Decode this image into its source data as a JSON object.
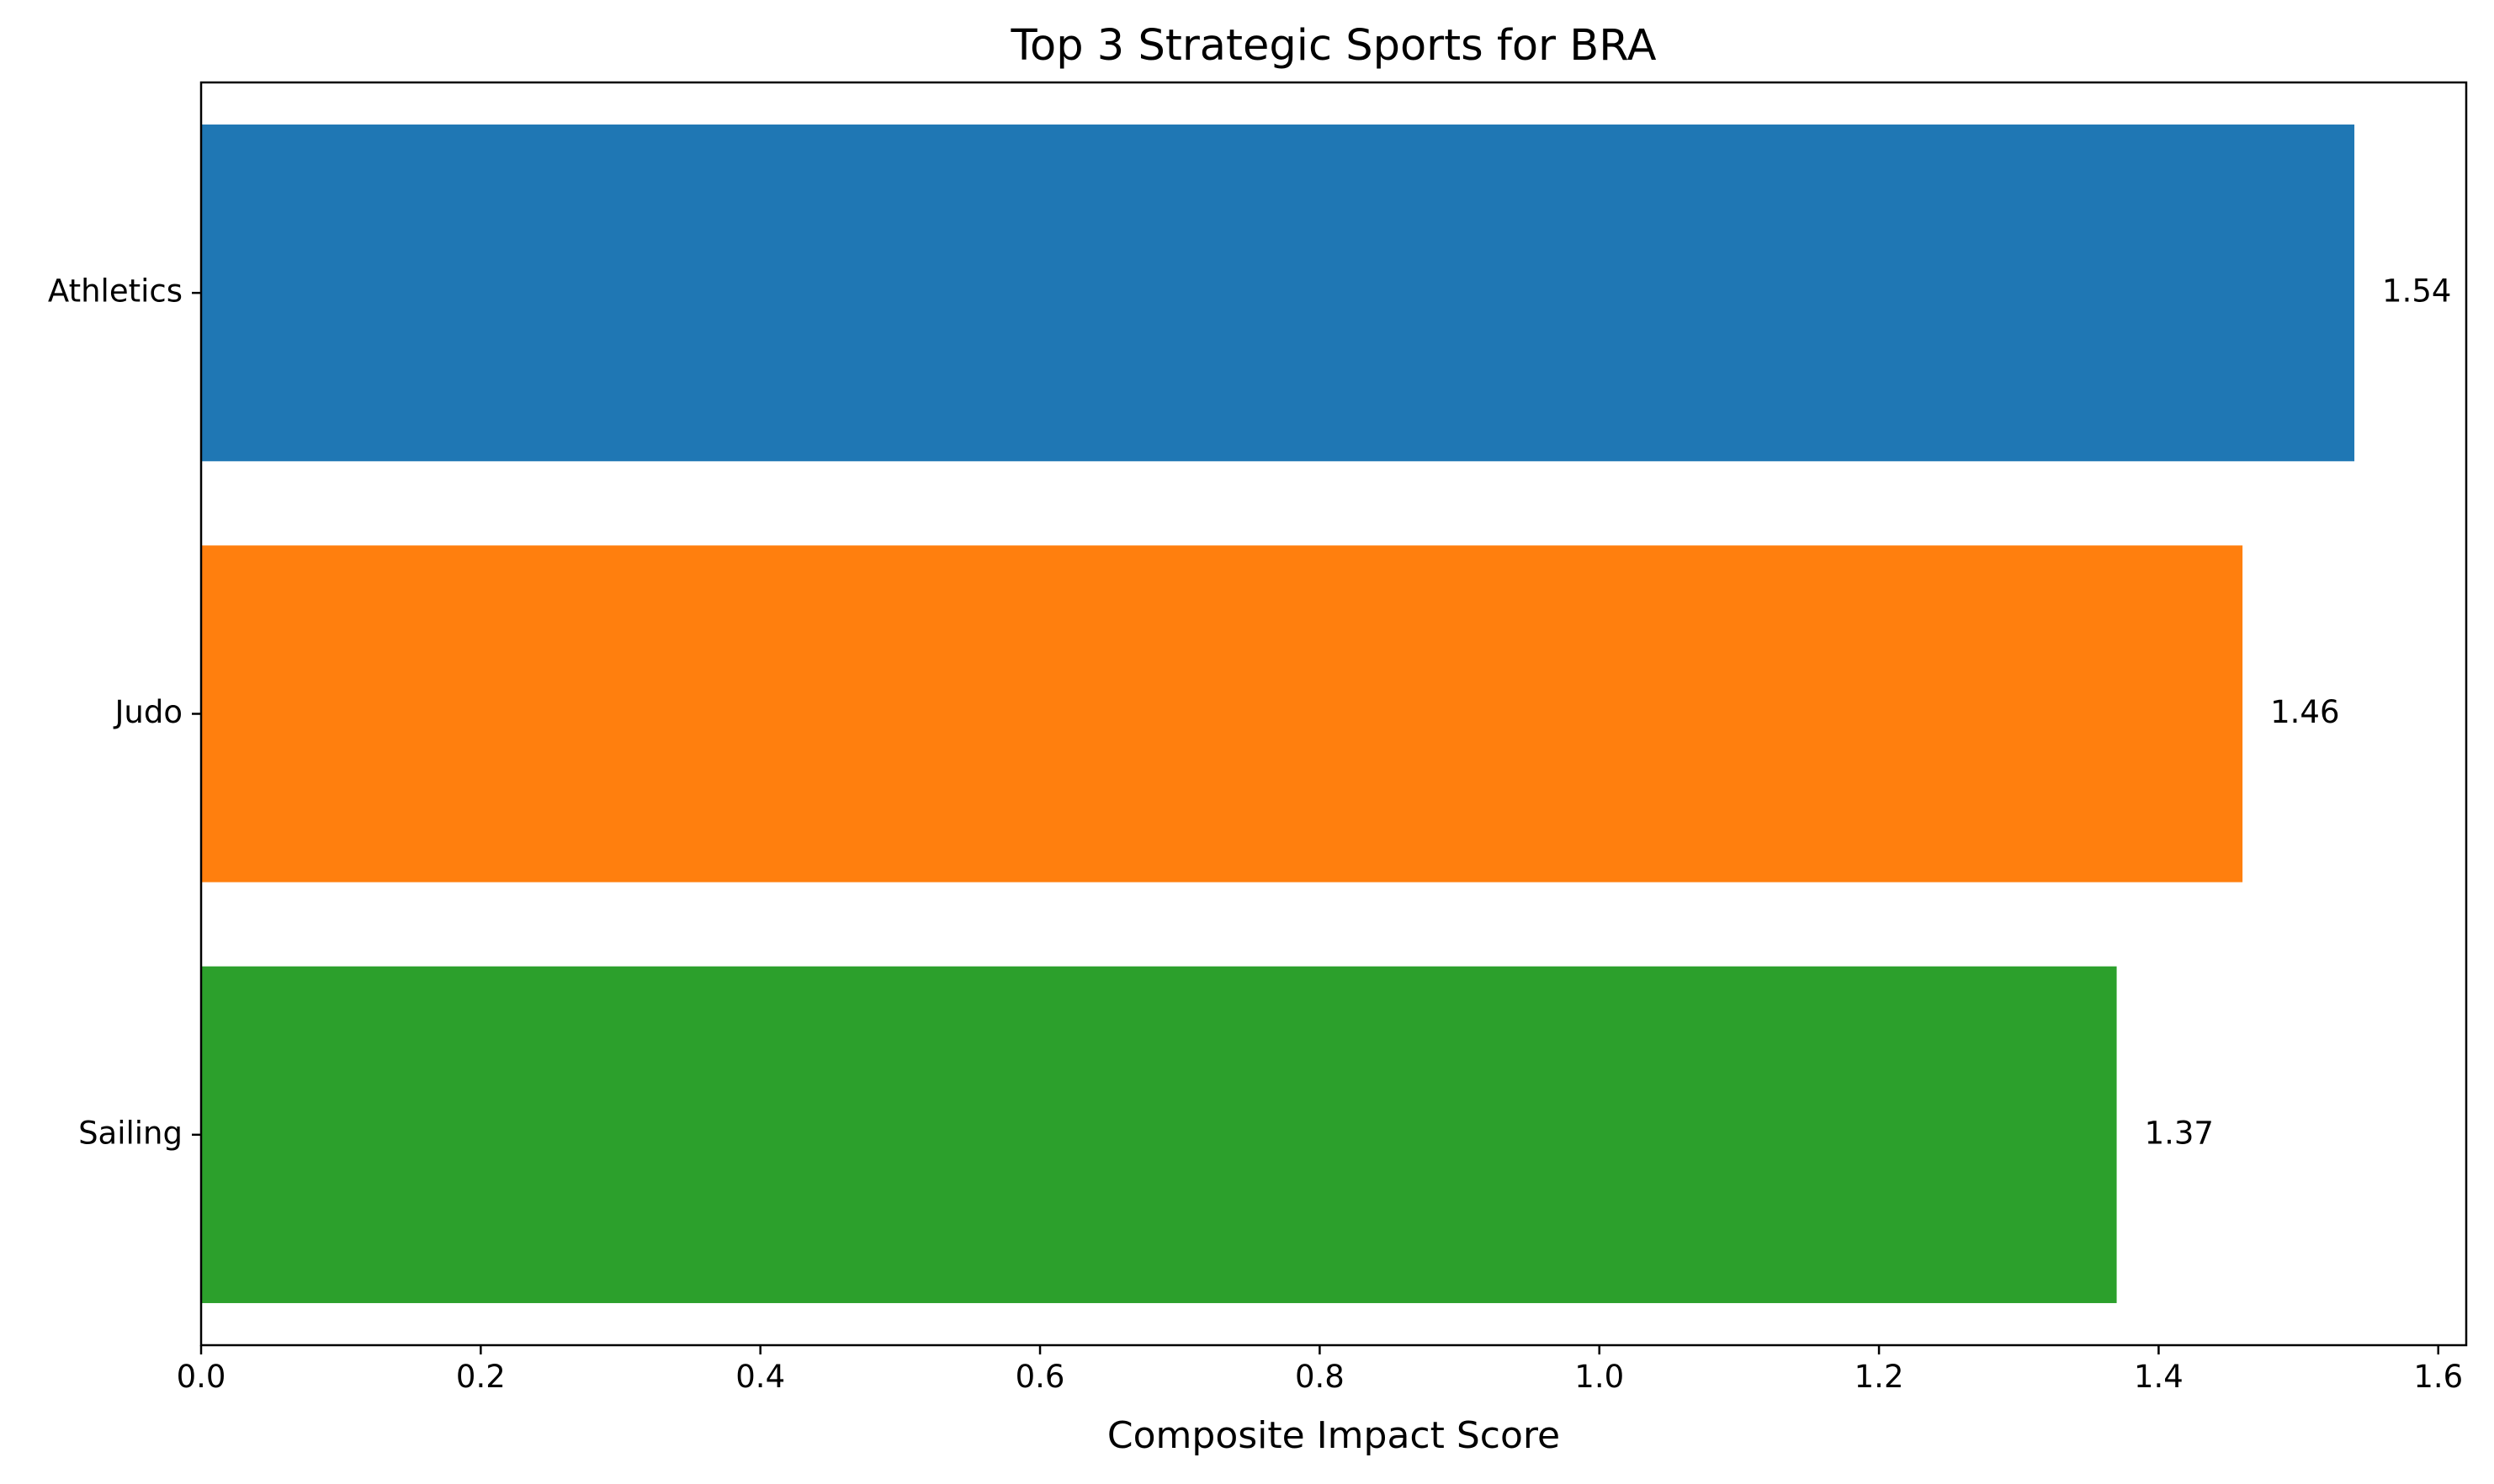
{
  "chart_data": {
    "type": "bar",
    "orientation": "horizontal",
    "title": "Top 3 Strategic Sports for BRA",
    "xlabel": "Composite Impact Score",
    "ylabel": "",
    "categories": [
      "Athletics",
      "Judo",
      "Sailing"
    ],
    "values": [
      1.54,
      1.46,
      1.37
    ],
    "value_labels": [
      "1.54",
      "1.46",
      "1.37"
    ],
    "colors": [
      "#1f77b4",
      "#ff7f0e",
      "#2ca02c"
    ],
    "xlim": [
      0,
      1.62
    ],
    "x_ticks": [
      0.0,
      0.2,
      0.4,
      0.6,
      0.8,
      1.0,
      1.2,
      1.4,
      1.6
    ],
    "x_tick_labels": [
      "0.0",
      "0.2",
      "0.4",
      "0.6",
      "0.8",
      "1.0",
      "1.2",
      "1.4",
      "1.6"
    ],
    "grid": false,
    "legend": "none"
  }
}
